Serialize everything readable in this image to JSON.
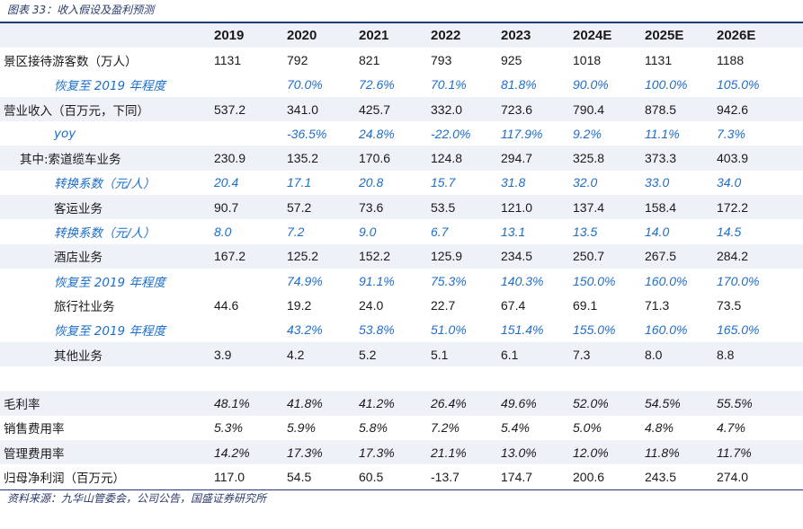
{
  "caption": "图表 33：收入假设及盈利预测",
  "source": "资料来源：九华山管委会，公司公告，国盛证券研究所",
  "years": [
    "2019",
    "2020",
    "2021",
    "2022",
    "2023",
    "2024E",
    "2025E",
    "2026E"
  ],
  "rows": [
    {
      "label": "景区接待游客数（万人）",
      "values": [
        "1131",
        "792",
        "821",
        "793",
        "925",
        "1018",
        "1131",
        "1188"
      ]
    },
    {
      "label": "恢复至 2019 年程度",
      "values": [
        "",
        "70.0%",
        "72.6%",
        "70.1%",
        "81.8%",
        "90.0%",
        "100.0%",
        "105.0%"
      ]
    },
    {
      "label": "营业收入（百万元，下同）",
      "values": [
        "537.2",
        "341.0",
        "425.7",
        "332.0",
        "723.6",
        "790.4",
        "878.5",
        "942.6"
      ]
    },
    {
      "label": "yoy",
      "values": [
        "",
        "-36.5%",
        "24.8%",
        "-22.0%",
        "117.9%",
        "9.2%",
        "11.1%",
        "7.3%"
      ]
    },
    {
      "label": "其中:索道缆车业务",
      "values": [
        "230.9",
        "135.2",
        "170.6",
        "124.8",
        "294.7",
        "325.8",
        "373.3",
        "403.9"
      ]
    },
    {
      "label": "转换系数（元/人）",
      "values": [
        "20.4",
        "17.1",
        "20.8",
        "15.7",
        "31.8",
        "32.0",
        "33.0",
        "34.0"
      ]
    },
    {
      "label": "客运业务",
      "values": [
        "90.7",
        "57.2",
        "73.6",
        "53.5",
        "121.0",
        "137.4",
        "158.4",
        "172.2"
      ]
    },
    {
      "label": "转换系数（元/人）",
      "values": [
        "8.0",
        "7.2",
        "9.0",
        "6.7",
        "13.1",
        "13.5",
        "14.0",
        "14.5"
      ]
    },
    {
      "label": "酒店业务",
      "values": [
        "167.2",
        "125.2",
        "152.2",
        "125.9",
        "234.5",
        "250.7",
        "267.5",
        "284.2"
      ]
    },
    {
      "label": "恢复至 2019 年程度",
      "values": [
        "",
        "74.9%",
        "91.1%",
        "75.3%",
        "140.3%",
        "150.0%",
        "160.0%",
        "170.0%"
      ]
    },
    {
      "label": "旅行社业务",
      "values": [
        "44.6",
        "19.2",
        "24.0",
        "22.7",
        "67.4",
        "69.1",
        "71.3",
        "73.5"
      ]
    },
    {
      "label": "恢复至 2019 年程度",
      "values": [
        "",
        "43.2%",
        "53.8%",
        "51.0%",
        "151.4%",
        "155.0%",
        "160.0%",
        "165.0%"
      ]
    },
    {
      "label": "其他业务",
      "values": [
        "3.9",
        "4.2",
        "5.2",
        "5.1",
        "6.1",
        "7.3",
        "8.0",
        "8.8"
      ]
    },
    {
      "label": "",
      "values": [
        "",
        "",
        "",
        "",
        "",
        "",
        "",
        ""
      ]
    },
    {
      "label": "毛利率",
      "values": [
        "48.1%",
        "41.8%",
        "41.2%",
        "26.4%",
        "49.6%",
        "52.0%",
        "54.5%",
        "55.5%"
      ]
    },
    {
      "label": "销售费用率",
      "values": [
        "5.3%",
        "5.9%",
        "5.8%",
        "7.2%",
        "5.4%",
        "5.0%",
        "4.8%",
        "4.7%"
      ]
    },
    {
      "label": "管理费用率",
      "values": [
        "14.2%",
        "17.3%",
        "17.3%",
        "21.1%",
        "13.0%",
        "12.0%",
        "11.8%",
        "11.7%"
      ]
    },
    {
      "label": "归母净利润（百万元）",
      "values": [
        "117.0",
        "54.5",
        "60.5",
        "-13.7",
        "174.7",
        "200.6",
        "243.5",
        "274.0"
      ]
    }
  ],
  "colors": {
    "accent_blue": "#1e6ec8",
    "rule": "#1f3c7a",
    "shade": "#eef1f8"
  }
}
